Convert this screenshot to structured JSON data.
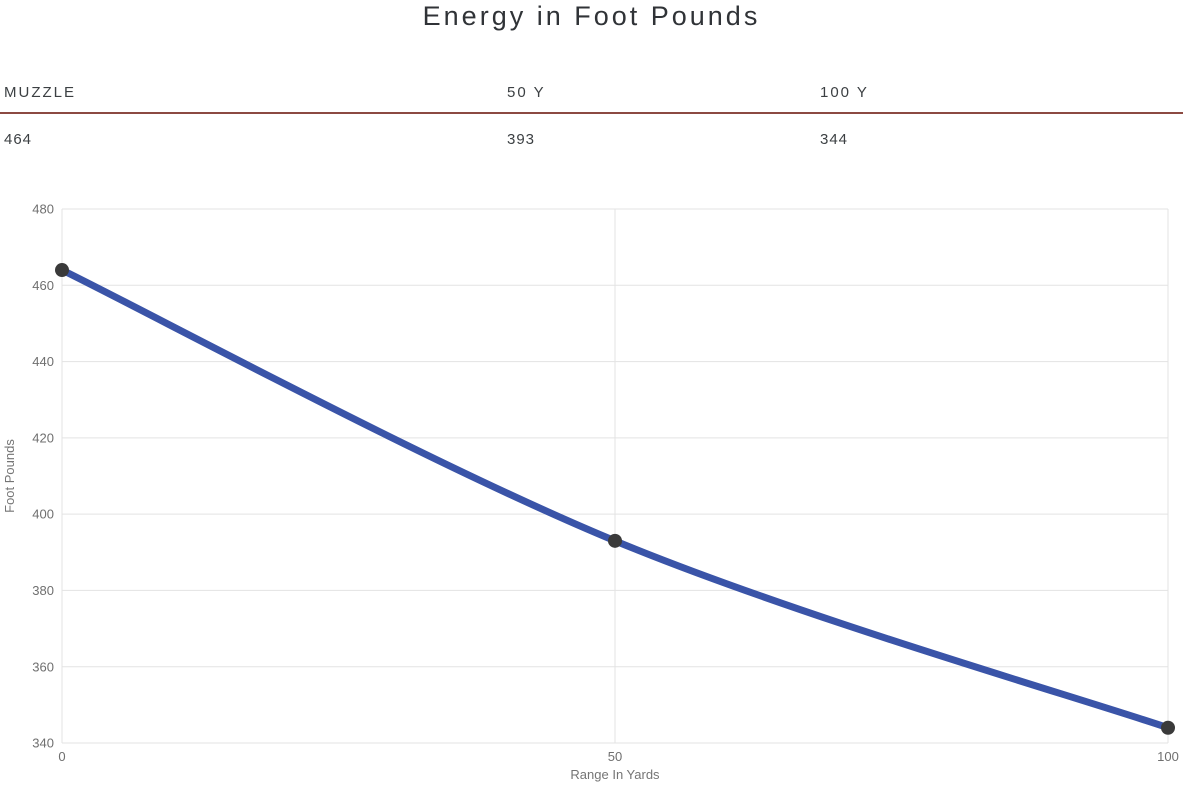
{
  "page": {
    "title": "Energy in Foot Pounds",
    "background_color": "#ffffff",
    "title_color": "#303337"
  },
  "stats_table": {
    "divider_color": "#8c4a42",
    "columns": [
      {
        "label": "MUZZLE",
        "value": "464"
      },
      {
        "label": "50 Y",
        "value": "393"
      },
      {
        "label": "100 Y",
        "value": "344"
      }
    ]
  },
  "chart_data": {
    "type": "line",
    "title": "",
    "xlabel": "Range In Yards",
    "ylabel": "Foot Pounds",
    "x": [
      0,
      50,
      100
    ],
    "series": [
      {
        "name": "Energy in Foot Pounds",
        "values": [
          464,
          393,
          344
        ]
      }
    ],
    "x_ticks": [
      0,
      50,
      100
    ],
    "y_ticks": [
      340,
      360,
      380,
      400,
      420,
      440,
      460,
      480
    ],
    "xlim": [
      0,
      100
    ],
    "ylim": [
      340,
      480
    ],
    "grid": true,
    "legend": "none",
    "curve": "smooth",
    "line_color": "#3a54a8",
    "line_width": 7,
    "marker_color": "#3a3a3a",
    "marker_radius": 7,
    "gridline_color": "#e3e3e3",
    "tick_text_color": "#6f6f6f",
    "axis_title_color": "#757575"
  }
}
